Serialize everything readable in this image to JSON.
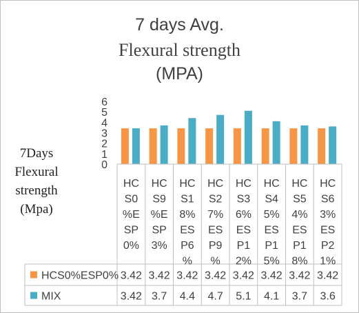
{
  "chart_data": {
    "type": "bar",
    "title_lines": [
      "7 days Avg.",
      "Flexural strength",
      "(MPA)"
    ],
    "ylabel_lines": [
      "7Days",
      "Flexural",
      "strength",
      "(Mpa)"
    ],
    "xlabel": "",
    "ylim": [
      0,
      6
    ],
    "yticks": [
      "0",
      "1",
      "2",
      "3",
      "4",
      "5",
      "6"
    ],
    "categories": [
      [
        "HC",
        "S0",
        "%E",
        "SP",
        "0%"
      ],
      [
        "HC",
        "S9",
        "%E",
        "SP",
        "3%"
      ],
      [
        "HC",
        "S1",
        "8%",
        "ES",
        "P6",
        "%"
      ],
      [
        "HC",
        "S2",
        "7%",
        "ES",
        "P9",
        "%"
      ],
      [
        "HC",
        "S3",
        "6%",
        "ES",
        "P1",
        "2%"
      ],
      [
        "HC",
        "S4",
        "5%",
        "ES",
        "P1",
        "5%"
      ],
      [
        "HC",
        "S5",
        "4%",
        "ES",
        "P1",
        "8%"
      ],
      [
        "HC",
        "S6",
        "3%",
        "ES",
        "P2",
        "1%"
      ]
    ],
    "series": [
      {
        "name": "HCS0%ESP0%",
        "color": "#f79646",
        "values": [
          3.42,
          3.42,
          3.42,
          3.42,
          3.42,
          3.42,
          3.42,
          3.42
        ]
      },
      {
        "name": "MIX",
        "color": "#4bacc6",
        "values": [
          3.42,
          3.7,
          4.4,
          4.7,
          5.1,
          4.1,
          3.7,
          3.6
        ]
      }
    ],
    "table_values": [
      [
        "3.42",
        "3.42",
        "3.42",
        "3.42",
        "3.42",
        "3.42",
        "3.42",
        "3.42"
      ],
      [
        "3.42",
        "3.7",
        "4.4",
        "4.7",
        "5.1",
        "4.1",
        "3.7",
        "3.6"
      ]
    ],
    "legend": "data-table",
    "grid": false
  }
}
